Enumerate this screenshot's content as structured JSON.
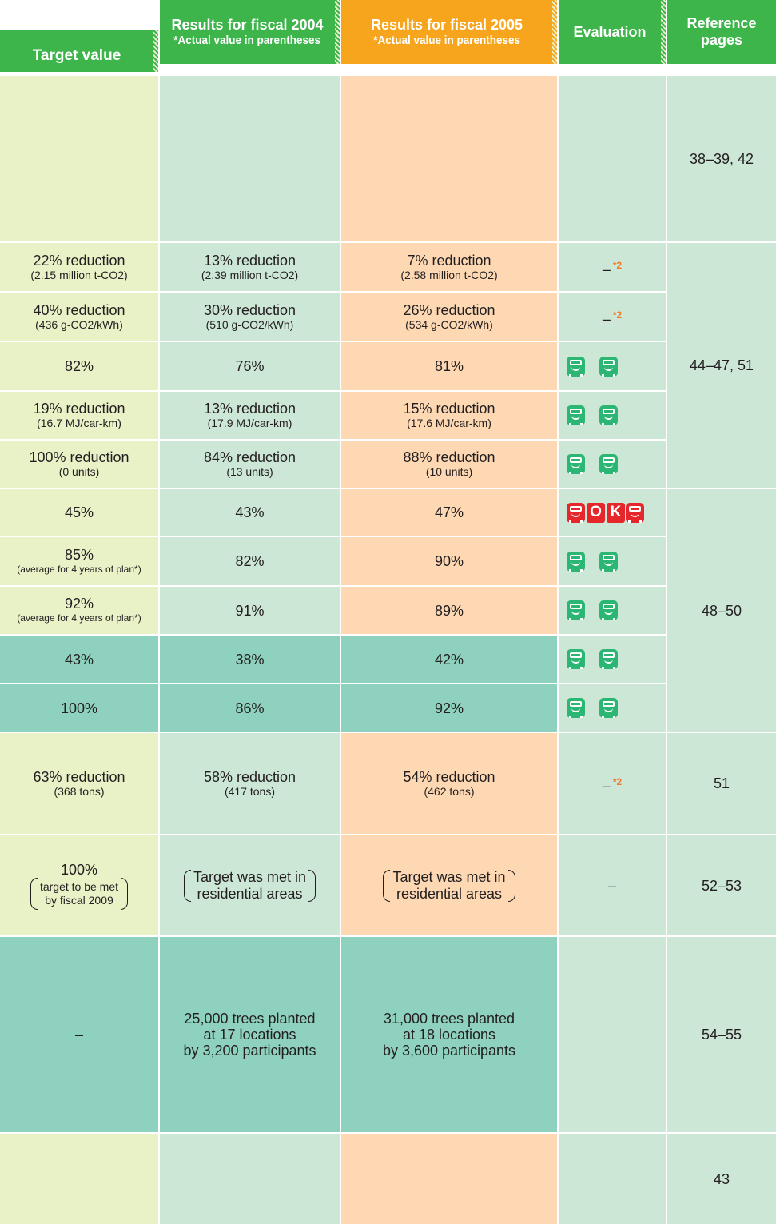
{
  "header": {
    "columns": [
      "Target value",
      "Results for fiscal 2004",
      "Results for fiscal 2005",
      "Evaluation",
      "Reference pages"
    ],
    "notes": [
      "*Actual value in parentheses",
      "*Actual value in parentheses"
    ]
  },
  "rows": [
    {},
    {
      "target": {
        "main": "22% reduction",
        "sub": "(2.15 million t-CO2)"
      },
      "fy2004": {
        "main": "13% reduction",
        "sub": "(2.39 million t-CO2)"
      },
      "fy2005": {
        "main": "7% reduction",
        "sub": "(2.58 million t-CO2)"
      },
      "evaluation": {
        "text": "–",
        "note": "*2"
      }
    },
    {
      "target": {
        "main": "40% reduction",
        "sub": "(436 g-CO2/kWh)"
      },
      "fy2004": {
        "main": "30% reduction",
        "sub": "(510 g-CO2/kWh)"
      },
      "fy2005": {
        "main": "26% reduction",
        "sub": "(534 g-CO2/kWh)"
      },
      "evaluation": {
        "text": "–",
        "note": "*2"
      }
    },
    {
      "target": {
        "main": "82%"
      },
      "fy2004": {
        "main": "76%"
      },
      "fy2005": {
        "main": "81%"
      }
    },
    {
      "target": {
        "main": "19% reduction",
        "sub": "(16.7 MJ/car-km)"
      },
      "fy2004": {
        "main": "13% reduction",
        "sub": "(17.9 MJ/car-km)"
      },
      "fy2005": {
        "main": "15% reduction",
        "sub": "(17.6 MJ/car-km)"
      }
    },
    {
      "target": {
        "main": "100% reduction",
        "sub": "(0 units)"
      },
      "fy2004": {
        "main": "84% reduction",
        "sub": "(13 units)"
      },
      "fy2005": {
        "main": "88% reduction",
        "sub": "(10 units)"
      }
    },
    {
      "target": {
        "main": "45%"
      },
      "fy2004": {
        "main": "43%"
      },
      "fy2005": {
        "main": "47%"
      },
      "evaluation": {
        "letters": [
          "O",
          "K"
        ]
      }
    },
    {
      "target": {
        "main": "85%",
        "sub": "(average for 4 years of plan*)"
      },
      "fy2004": {
        "main": "82%"
      },
      "fy2005": {
        "main": "90%"
      }
    },
    {
      "target": {
        "main": "92%",
        "sub": "(average for 4 years of plan*)"
      },
      "fy2004": {
        "main": "91%"
      },
      "fy2005": {
        "main": "89%"
      }
    },
    {
      "target": {
        "main": "43%"
      },
      "fy2004": {
        "main": "38%"
      },
      "fy2005": {
        "main": "42%"
      }
    },
    {
      "target": {
        "main": "100%"
      },
      "fy2004": {
        "main": "86%"
      },
      "fy2005": {
        "main": "92%"
      }
    },
    {
      "target": {
        "main": "63% reduction",
        "sub": "(368 tons)"
      },
      "fy2004": {
        "main": "58% reduction",
        "sub": "(417 tons)"
      },
      "fy2005": {
        "main": "54% reduction",
        "sub": "(462 tons)"
      },
      "evaluation": {
        "text": "–",
        "note": "*2"
      }
    },
    {
      "target": {
        "main": "100%",
        "paren_small": [
          "target to be met",
          "by fiscal 2009"
        ]
      },
      "fy2004": {
        "paren": [
          "Target was met in",
          "residential areas"
        ]
      },
      "fy2005": {
        "paren": [
          "Target was met in",
          "residential areas"
        ]
      },
      "evaluation": {
        "text": "–"
      }
    },
    {
      "target": {
        "main": "–"
      },
      "fy2004": {
        "lines": [
          "25,000 trees planted",
          "at 17 locations",
          "by 3,200 participants"
        ]
      },
      "fy2005": {
        "lines": [
          "31,000 trees planted",
          "at 18 locations",
          "by 3,600 participants"
        ]
      }
    },
    {}
  ],
  "reference_pages": [
    "38–39, 42",
    "44–47, 51",
    "48–50",
    "51",
    "52–53",
    "54–55",
    "43"
  ]
}
